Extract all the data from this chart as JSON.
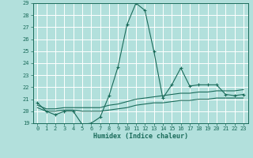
{
  "xlabel": "Humidex (Indice chaleur)",
  "ylabel": "",
  "background_color": "#b2e0dc",
  "grid_color": "#ffffff",
  "line_color": "#1a6b5a",
  "xlim": [
    -0.5,
    23.5
  ],
  "ylim": [
    19,
    29
  ],
  "yticks": [
    19,
    20,
    21,
    22,
    23,
    24,
    25,
    26,
    27,
    28,
    29
  ],
  "xticks": [
    0,
    1,
    2,
    3,
    4,
    5,
    6,
    7,
    8,
    9,
    10,
    11,
    12,
    13,
    14,
    15,
    16,
    17,
    18,
    19,
    20,
    21,
    22,
    23
  ],
  "series1_x": [
    0,
    1,
    2,
    3,
    4,
    5,
    6,
    7,
    8,
    9,
    10,
    11,
    12,
    13,
    14,
    15,
    16,
    17,
    18,
    19,
    20,
    21,
    22,
    23
  ],
  "series1_y": [
    20.7,
    20.0,
    19.7,
    20.0,
    20.0,
    18.9,
    19.0,
    19.5,
    21.3,
    23.7,
    27.2,
    29.0,
    28.4,
    25.0,
    21.1,
    22.2,
    23.6,
    22.1,
    22.2,
    22.2,
    22.2,
    21.4,
    21.3,
    21.4
  ],
  "series2_x": [
    0,
    1,
    2,
    3,
    4,
    5,
    6,
    7,
    8,
    9,
    10,
    11,
    12,
    13,
    14,
    15,
    16,
    17,
    18,
    19,
    20,
    21,
    22,
    23
  ],
  "series2_y": [
    20.5,
    20.2,
    20.2,
    20.3,
    20.3,
    20.3,
    20.3,
    20.3,
    20.5,
    20.6,
    20.8,
    21.0,
    21.1,
    21.2,
    21.3,
    21.4,
    21.5,
    21.5,
    21.6,
    21.6,
    21.7,
    21.7,
    21.7,
    21.8
  ],
  "series3_x": [
    0,
    1,
    2,
    3,
    4,
    5,
    6,
    7,
    8,
    9,
    10,
    11,
    12,
    13,
    14,
    15,
    16,
    17,
    18,
    19,
    20,
    21,
    22,
    23
  ],
  "series3_y": [
    20.3,
    20.0,
    20.0,
    20.1,
    20.1,
    20.0,
    20.0,
    20.0,
    20.1,
    20.2,
    20.3,
    20.5,
    20.6,
    20.7,
    20.7,
    20.8,
    20.9,
    20.9,
    21.0,
    21.0,
    21.1,
    21.1,
    21.1,
    21.1
  ],
  "tick_fontsize": 5.0,
  "xlabel_fontsize": 6.0
}
